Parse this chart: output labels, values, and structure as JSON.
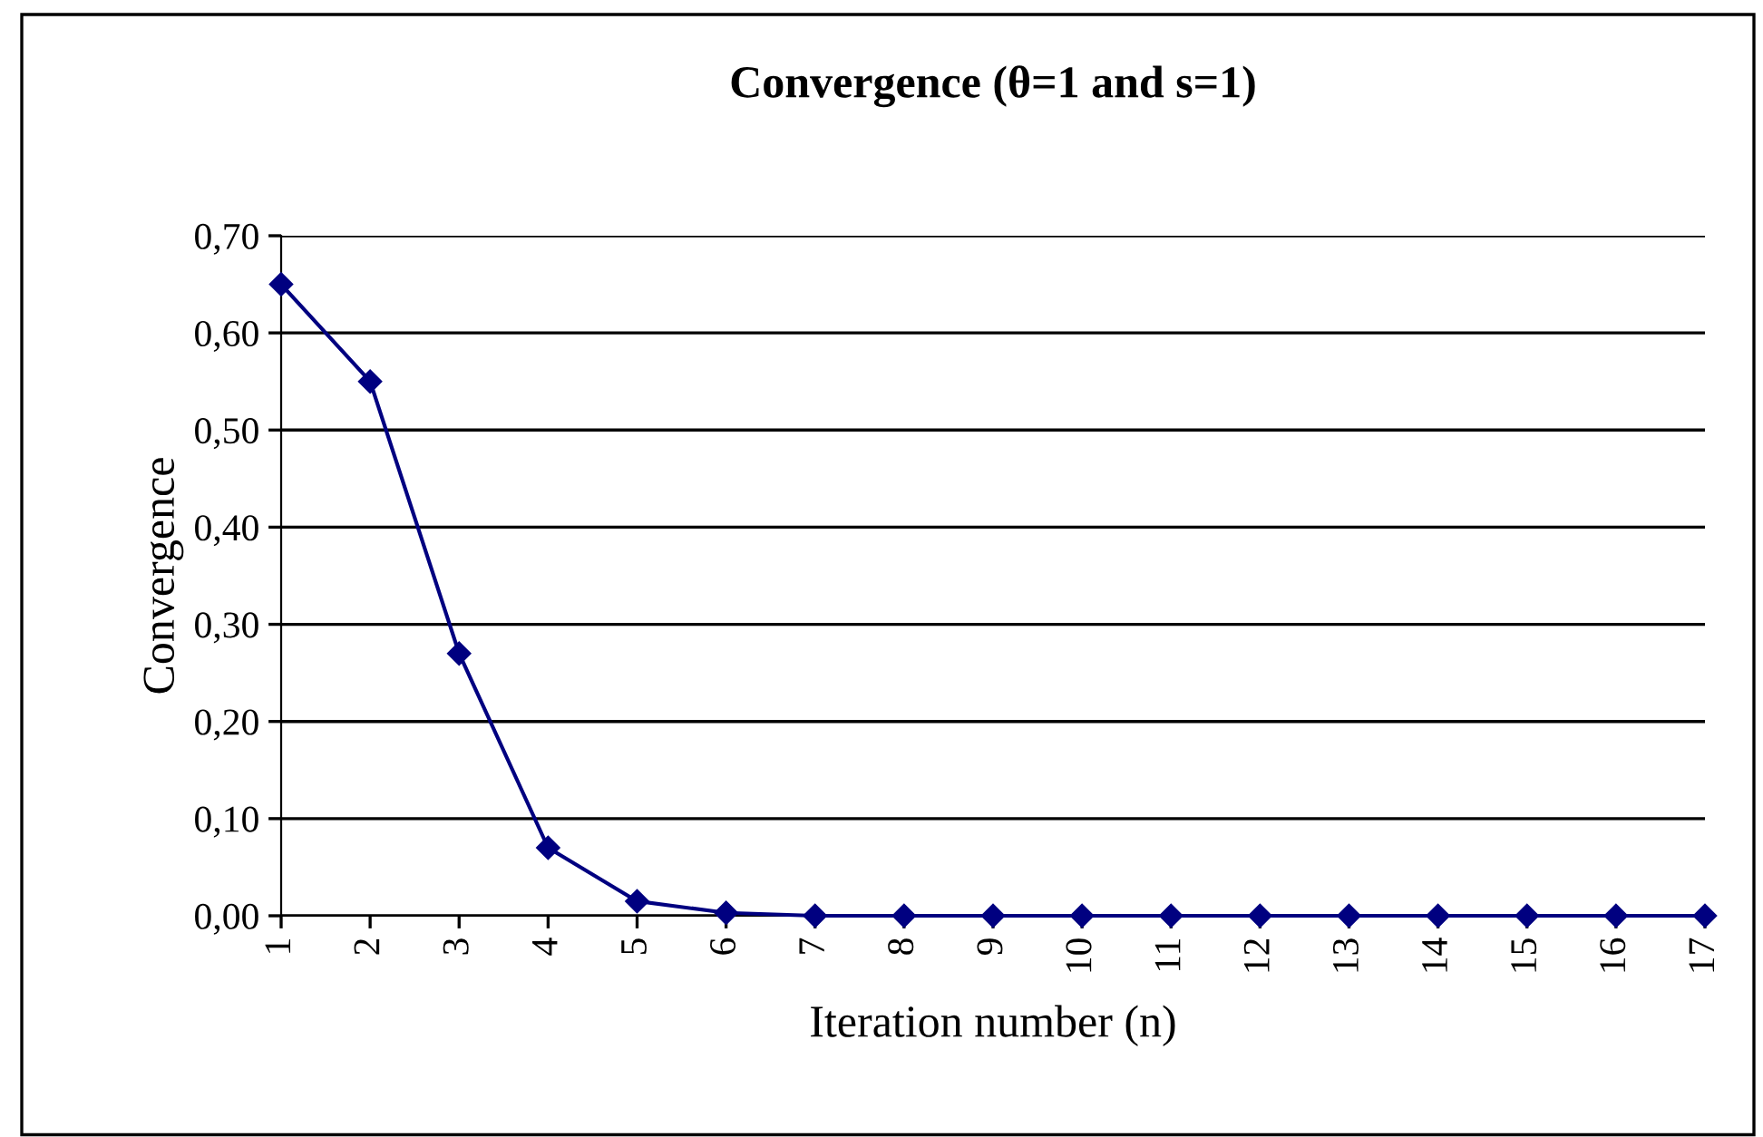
{
  "chart_data": {
    "type": "line",
    "title": "Convergence (θ=1 and s=1)",
    "xlabel": "Iteration number (n)",
    "ylabel": "Convergence",
    "categories": [
      "1",
      "2",
      "3",
      "4",
      "5",
      "6",
      "7",
      "8",
      "9",
      "10",
      "11",
      "12",
      "13",
      "14",
      "15",
      "16",
      "17"
    ],
    "series": [
      {
        "color": "#000080",
        "values": [
          0.65,
          0.55,
          0.27,
          0.07,
          0.015,
          0.003,
          0,
          0,
          0,
          0,
          0,
          0,
          0,
          0,
          0,
          0,
          0
        ]
      }
    ],
    "ylim": [
      0,
      0.7
    ],
    "yticks": [
      {
        "value": 0,
        "label": "0,00"
      },
      {
        "value": 0.1,
        "label": "0,10"
      },
      {
        "value": 0.2,
        "label": "0,20"
      },
      {
        "value": 0.3,
        "label": "0,30"
      },
      {
        "value": 0.4,
        "label": "0,40"
      },
      {
        "value": 0.5,
        "label": "0,50"
      },
      {
        "value": 0.6,
        "label": "0,60"
      },
      {
        "value": 0.7,
        "label": "0,70"
      }
    ],
    "grid": "y",
    "marker": "diamond",
    "line_style": "solid"
  }
}
